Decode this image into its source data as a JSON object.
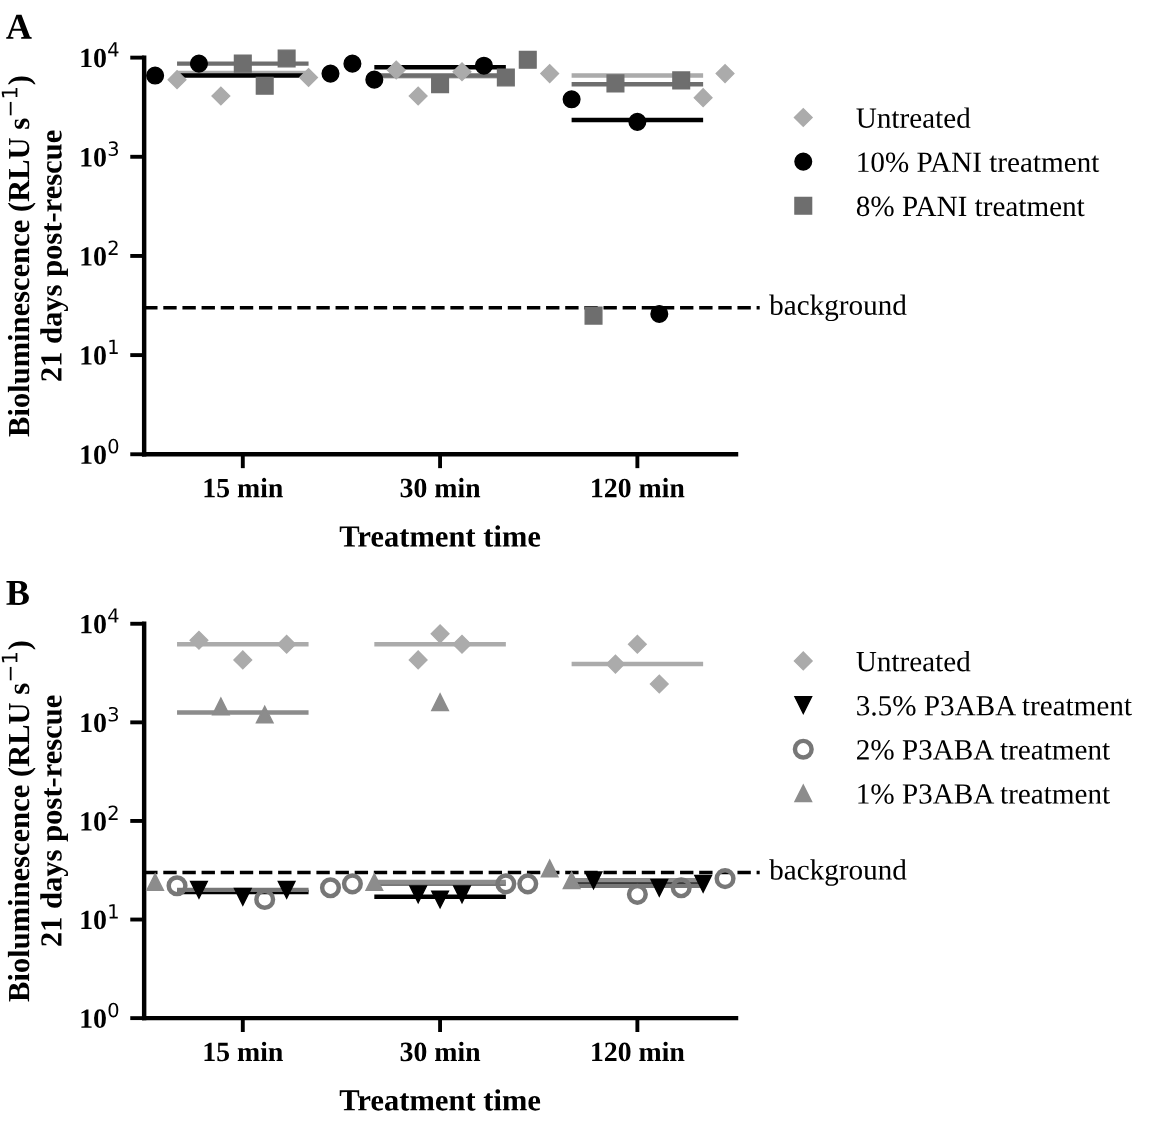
{
  "chart_data": [
    {
      "type": "scatter",
      "title": "A",
      "xlabel": "Treatment time",
      "ylabel": "Bioluminescence (RLU s$^{−1}$)\n21 days post-rescue",
      "log": "y",
      "ylim": [
        1,
        10000
      ],
      "yticks": [
        {
          "value": 1,
          "label": "10$^{0}$"
        },
        {
          "value": 10,
          "label": "10$^{1}$"
        },
        {
          "value": 100,
          "label": "10$^{2}$"
        },
        {
          "value": 1000,
          "label": "10$^{3}$"
        },
        {
          "value": 10000,
          "label": "10$^{4}$"
        }
      ],
      "categories": [
        null,
        null,
        null,
        null,
        "15 min",
        null,
        null,
        null,
        null,
        null,
        null,
        null,
        null,
        "30 min",
        null,
        null,
        null,
        null,
        null,
        null,
        null,
        null,
        "120 min",
        null,
        null,
        null,
        null
      ],
      "grid": false,
      "legend": "right",
      "ref_lines": [
        {
          "axis": "y",
          "value": 30,
          "label": "background",
          "color": "#000000",
          "line_style": "dashed"
        }
      ],
      "series": [
        {
          "name": "Untreated",
          "marker": "diamond",
          "color": "#ababab",
          "values": [
            null,
            6000,
            null,
            4100,
            null,
            null,
            null,
            6300,
            null,
            null,
            null,
            7500,
            4100,
            null,
            7200,
            null,
            null,
            null,
            6900,
            null,
            null,
            null,
            null,
            null,
            null,
            3950,
            6900
          ]
        },
        {
          "name": "10% PANI treatment",
          "marker": "circle",
          "color": "#000000",
          "values": [
            6600,
            null,
            8700,
            null,
            null,
            null,
            null,
            null,
            6900,
            8700,
            6000,
            null,
            null,
            null,
            null,
            8300,
            null,
            null,
            null,
            3800,
            null,
            null,
            2250,
            26,
            null,
            null,
            null
          ]
        },
        {
          "name": "8% PANI treatment",
          "marker": "square",
          "color": "#6e6e6e",
          "values": [
            null,
            null,
            null,
            null,
            8700,
            5200,
            9800,
            null,
            null,
            null,
            null,
            null,
            null,
            5400,
            null,
            null,
            6300,
            9500,
            null,
            null,
            25,
            5500,
            null,
            null,
            5900,
            null,
            null
          ]
        },
        {
          "type": "line",
          "line_style": "solid",
          "marker": "none",
          "color": "#ababab",
          "values": [
            null,
            7000,
            7000,
            7000,
            7000,
            7000,
            7000,
            7000,
            null,
            null,
            6500,
            6500,
            6500,
            6500,
            6500,
            6500,
            6500,
            null,
            null,
            6600,
            6600,
            6600,
            6600,
            6600,
            6600,
            6600,
            null
          ]
        },
        {
          "type": "line",
          "line_style": "solid",
          "marker": "none",
          "color": "#000000",
          "values": [
            null,
            6600,
            6600,
            6600,
            6600,
            6600,
            6600,
            6600,
            null,
            null,
            8000,
            8000,
            8000,
            8000,
            8000,
            8000,
            8000,
            null,
            null,
            2350,
            2350,
            2350,
            2350,
            2350,
            2350,
            2350,
            null
          ]
        },
        {
          "type": "line",
          "line_style": "solid",
          "marker": "none",
          "color": "#6e6e6e",
          "values": [
            null,
            8700,
            8700,
            8700,
            8700,
            8700,
            8700,
            8700,
            null,
            null,
            6600,
            6600,
            6600,
            6600,
            6600,
            6600,
            6600,
            null,
            null,
            5400,
            5400,
            5400,
            5400,
            5400,
            5400,
            5400,
            null
          ]
        }
      ]
    },
    {
      "type": "scatter",
      "title": "B",
      "xlabel": "Treatment time",
      "ylabel": "Bioluminescence (RLU s$^{−1}$)\n21 days post-rescue",
      "log": "y",
      "ylim": [
        1,
        10000
      ],
      "yticks": [
        {
          "value": 1,
          "label": "10$^{0}$"
        },
        {
          "value": 10,
          "label": "10$^{1}$"
        },
        {
          "value": 100,
          "label": "10$^{2}$"
        },
        {
          "value": 1000,
          "label": "10$^{3}$"
        },
        {
          "value": 10000,
          "label": "10$^{4}$"
        }
      ],
      "categories": [
        null,
        null,
        null,
        null,
        "15 min",
        null,
        null,
        null,
        null,
        null,
        null,
        null,
        null,
        "30 min",
        null,
        null,
        null,
        null,
        null,
        null,
        null,
        null,
        "120 min",
        null,
        null,
        null,
        null
      ],
      "grid": false,
      "legend": "right",
      "ref_lines": [
        {
          "axis": "y",
          "value": 30,
          "label": "background",
          "color": "#000000",
          "line_style": "dashed"
        }
      ],
      "series": [
        {
          "name": "Untreated",
          "marker": "diamond",
          "color": "#ababab",
          "values": [
            null,
            null,
            6800,
            null,
            4300,
            null,
            6200,
            null,
            null,
            null,
            null,
            null,
            4300,
            7900,
            6200,
            null,
            null,
            null,
            null,
            null,
            null,
            3900,
            6200,
            2450,
            null,
            null,
            null
          ]
        },
        {
          "name": "3.5% P3ABA treatment",
          "marker": "triangle_down",
          "color": "#000000",
          "values": [
            null,
            null,
            20,
            null,
            17,
            null,
            20,
            null,
            null,
            null,
            null,
            null,
            18,
            16,
            18,
            null,
            null,
            null,
            null,
            null,
            25,
            null,
            null,
            21,
            null,
            23,
            null
          ]
        },
        {
          "name": "2% P3ABA treatment",
          "marker": "circle_open",
          "color": "#777777",
          "values": [
            null,
            22,
            null,
            null,
            null,
            16,
            null,
            null,
            21,
            23,
            null,
            null,
            null,
            null,
            null,
            null,
            23,
            23,
            null,
            null,
            null,
            null,
            18,
            null,
            21,
            null,
            26
          ]
        },
        {
          "name": "1% P3ABA treatment",
          "marker": "triangle",
          "color": "#8c8c8c",
          "values": [
            24,
            null,
            null,
            1450,
            null,
            1200,
            null,
            null,
            null,
            null,
            24,
            null,
            null,
            1600,
            null,
            null,
            null,
            null,
            33,
            25,
            null,
            null,
            null,
            null,
            null,
            null,
            null
          ]
        },
        {
          "type": "line",
          "line_style": "solid",
          "marker": "none",
          "color": "#ababab",
          "values": [
            null,
            6200,
            6200,
            6200,
            6200,
            6200,
            6200,
            6200,
            null,
            null,
            6200,
            6200,
            6200,
            6200,
            6200,
            6200,
            6200,
            null,
            null,
            3900,
            3900,
            3900,
            3900,
            3900,
            3900,
            3900,
            null
          ]
        },
        {
          "type": "line",
          "line_style": "solid",
          "marker": "none",
          "color": "#000000",
          "values": [
            null,
            19,
            19,
            19,
            19,
            19,
            19,
            19,
            null,
            null,
            17,
            17,
            17,
            17,
            17,
            17,
            17,
            null,
            null,
            23,
            23,
            23,
            23,
            23,
            23,
            23,
            null
          ]
        },
        {
          "type": "line",
          "line_style": "solid",
          "marker": "none",
          "color": "#777777",
          "values": [
            null,
            20,
            20,
            20,
            20,
            20,
            20,
            20,
            null,
            null,
            23,
            23,
            23,
            23,
            23,
            23,
            23,
            null,
            null,
            22,
            22,
            22,
            22,
            22,
            22,
            22,
            null
          ]
        },
        {
          "type": "line",
          "line_style": "solid",
          "marker": "none",
          "color": "#8c8c8c",
          "values": [
            null,
            1260,
            1260,
            1260,
            1260,
            1260,
            1260,
            1260,
            null,
            null,
            24,
            24,
            24,
            24,
            24,
            24,
            24,
            null,
            null,
            25,
            25,
            25,
            25,
            25,
            25,
            25,
            null
          ]
        }
      ]
    }
  ]
}
